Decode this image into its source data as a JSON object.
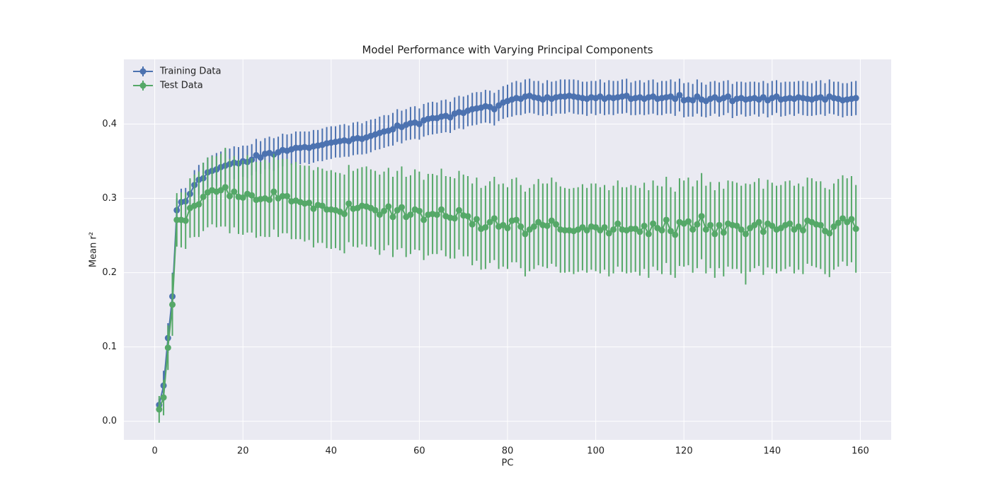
{
  "chart_data": {
    "type": "errorbar-line",
    "title": "Model Performance with Varying Principal Components",
    "x_label": "PC",
    "y_label": "Mean r²",
    "xlim": [
      -7,
      167
    ],
    "ylim": [
      -0.025,
      0.487
    ],
    "xticks": [
      0,
      20,
      40,
      60,
      80,
      100,
      120,
      140,
      160
    ],
    "yticks": [
      {
        "value": 0,
        "label": "0.0"
      },
      0.1,
      0.2,
      0.3,
      0.4
    ],
    "grid": true,
    "legend": "upper left",
    "x": [
      1,
      2,
      3,
      4,
      5,
      6,
      7,
      8,
      9,
      10,
      11,
      12,
      13,
      14,
      15,
      16,
      17,
      18,
      19,
      20,
      21,
      22,
      23,
      24,
      25,
      26,
      27,
      28,
      29,
      30,
      31,
      32,
      33,
      34,
      35,
      36,
      37,
      38,
      39,
      40,
      41,
      42,
      43,
      44,
      45,
      46,
      47,
      48,
      49,
      50,
      51,
      52,
      53,
      54,
      55,
      56,
      57,
      58,
      59,
      60,
      61,
      62,
      63,
      64,
      65,
      66,
      67,
      68,
      69,
      70,
      71,
      72,
      73,
      74,
      75,
      76,
      77,
      78,
      79,
      80,
      81,
      82,
      83,
      84,
      85,
      86,
      87,
      88,
      89,
      90,
      91,
      92,
      93,
      94,
      95,
      96,
      97,
      98,
      99,
      100,
      101,
      102,
      103,
      104,
      105,
      106,
      107,
      108,
      109,
      110,
      111,
      112,
      113,
      114,
      115,
      116,
      117,
      118,
      119,
      120,
      121,
      122,
      123,
      124,
      125,
      126,
      127,
      128,
      129,
      130,
      131,
      132,
      133,
      134,
      135,
      136,
      137,
      138,
      139,
      140,
      141,
      142,
      143,
      144,
      145,
      146,
      147,
      148,
      149,
      150,
      151,
      152,
      153,
      154,
      155,
      156,
      157,
      158,
      159
    ],
    "series": [
      {
        "name": "Training Data",
        "color": "#4c72b0",
        "values": [
          0.022,
          0.048,
          0.112,
          0.168,
          0.284,
          0.295,
          0.296,
          0.306,
          0.318,
          0.325,
          0.327,
          0.335,
          0.337,
          0.339,
          0.342,
          0.344,
          0.346,
          0.348,
          0.347,
          0.35,
          0.349,
          0.352,
          0.358,
          0.355,
          0.36,
          0.361,
          0.359,
          0.362,
          0.365,
          0.364,
          0.366,
          0.368,
          0.368,
          0.369,
          0.368,
          0.37,
          0.371,
          0.372,
          0.374,
          0.375,
          0.376,
          0.377,
          0.378,
          0.377,
          0.38,
          0.381,
          0.38,
          0.382,
          0.384,
          0.386,
          0.388,
          0.39,
          0.391,
          0.393,
          0.398,
          0.396,
          0.399,
          0.401,
          0.402,
          0.4,
          0.405,
          0.407,
          0.408,
          0.408,
          0.41,
          0.411,
          0.409,
          0.414,
          0.416,
          0.415,
          0.418,
          0.42,
          0.421,
          0.422,
          0.424,
          0.423,
          0.42,
          0.425,
          0.429,
          0.431,
          0.433,
          0.435,
          0.434,
          0.437,
          0.438,
          0.436,
          0.435,
          0.433,
          0.436,
          0.434,
          0.436,
          0.437,
          0.437,
          0.438,
          0.437,
          0.436,
          0.435,
          0.434,
          0.436,
          0.435,
          0.437,
          0.434,
          0.436,
          0.435,
          0.436,
          0.437,
          0.438,
          0.434,
          0.435,
          0.436,
          0.434,
          0.436,
          0.437,
          0.434,
          0.435,
          0.436,
          0.437,
          0.434,
          0.439,
          0.432,
          0.433,
          0.432,
          0.437,
          0.433,
          0.431,
          0.434,
          0.436,
          0.433,
          0.435,
          0.437,
          0.431,
          0.434,
          0.435,
          0.433,
          0.434,
          0.435,
          0.433,
          0.436,
          0.432,
          0.435,
          0.437,
          0.433,
          0.434,
          0.435,
          0.434,
          0.436,
          0.435,
          0.434,
          0.433,
          0.435,
          0.436,
          0.433,
          0.437,
          0.435,
          0.434,
          0.432,
          0.433,
          0.434,
          0.435
        ],
        "errors": [
          0.008,
          0.02,
          0.02,
          0.032,
          0.016,
          0.018,
          0.018,
          0.019,
          0.02,
          0.02,
          0.021,
          0.02,
          0.021,
          0.022,
          0.021,
          0.022,
          0.021,
          0.022,
          0.022,
          0.021,
          0.022,
          0.021,
          0.022,
          0.022,
          0.021,
          0.022,
          0.022,
          0.021,
          0.022,
          0.022,
          0.021,
          0.022,
          0.022,
          0.021,
          0.022,
          0.022,
          0.021,
          0.022,
          0.022,
          0.022,
          0.021,
          0.022,
          0.022,
          0.021,
          0.022,
          0.022,
          0.021,
          0.022,
          0.022,
          0.021,
          0.022,
          0.022,
          0.021,
          0.022,
          0.022,
          0.022,
          0.021,
          0.022,
          0.022,
          0.021,
          0.022,
          0.022,
          0.022,
          0.021,
          0.022,
          0.022,
          0.021,
          0.022,
          0.022,
          0.022,
          0.021,
          0.022,
          0.022,
          0.021,
          0.022,
          0.022,
          0.022,
          0.021,
          0.022,
          0.022,
          0.023,
          0.023,
          0.022,
          0.023,
          0.023,
          0.022,
          0.023,
          0.022,
          0.023,
          0.023,
          0.022,
          0.023,
          0.023,
          0.022,
          0.023,
          0.023,
          0.022,
          0.023,
          0.022,
          0.023,
          0.023,
          0.022,
          0.023,
          0.023,
          0.022,
          0.023,
          0.023,
          0.022,
          0.023,
          0.023,
          0.022,
          0.023,
          0.023,
          0.022,
          0.023,
          0.022,
          0.023,
          0.023,
          0.022,
          0.023,
          0.023,
          0.022,
          0.023,
          0.023,
          0.022,
          0.023,
          0.022,
          0.023,
          0.023,
          0.022,
          0.023,
          0.023,
          0.022,
          0.023,
          0.023,
          0.022,
          0.023,
          0.022,
          0.023,
          0.023,
          0.022,
          0.023,
          0.023,
          0.022,
          0.023,
          0.022,
          0.023,
          0.023,
          0.022,
          0.023,
          0.023,
          0.022,
          0.023,
          0.022,
          0.023,
          0.023,
          0.022,
          0.023,
          0.023
        ]
      },
      {
        "name": "Test Data",
        "color": "#55a868",
        "values": [
          0.016,
          0.032,
          0.099,
          0.157,
          0.271,
          0.271,
          0.27,
          0.287,
          0.29,
          0.292,
          0.302,
          0.308,
          0.311,
          0.309,
          0.311,
          0.315,
          0.303,
          0.309,
          0.302,
          0.301,
          0.306,
          0.304,
          0.298,
          0.299,
          0.3,
          0.298,
          0.309,
          0.3,
          0.303,
          0.303,
          0.296,
          0.297,
          0.295,
          0.293,
          0.294,
          0.286,
          0.291,
          0.29,
          0.285,
          0.285,
          0.284,
          0.282,
          0.279,
          0.293,
          0.286,
          0.287,
          0.29,
          0.289,
          0.287,
          0.284,
          0.278,
          0.283,
          0.289,
          0.275,
          0.284,
          0.288,
          0.275,
          0.278,
          0.285,
          0.283,
          0.271,
          0.278,
          0.279,
          0.278,
          0.285,
          0.276,
          0.274,
          0.273,
          0.284,
          0.277,
          0.276,
          0.265,
          0.272,
          0.259,
          0.261,
          0.268,
          0.273,
          0.262,
          0.264,
          0.26,
          0.27,
          0.271,
          0.262,
          0.252,
          0.258,
          0.262,
          0.268,
          0.264,
          0.263,
          0.27,
          0.265,
          0.258,
          0.257,
          0.257,
          0.256,
          0.258,
          0.261,
          0.257,
          0.262,
          0.261,
          0.257,
          0.261,
          0.253,
          0.258,
          0.266,
          0.258,
          0.257,
          0.259,
          0.259,
          0.255,
          0.263,
          0.252,
          0.266,
          0.26,
          0.257,
          0.271,
          0.256,
          0.251,
          0.268,
          0.266,
          0.269,
          0.258,
          0.265,
          0.276,
          0.258,
          0.264,
          0.252,
          0.264,
          0.254,
          0.266,
          0.264,
          0.263,
          0.258,
          0.252,
          0.26,
          0.264,
          0.268,
          0.255,
          0.266,
          0.263,
          0.258,
          0.26,
          0.264,
          0.266,
          0.258,
          0.262,
          0.257,
          0.27,
          0.268,
          0.265,
          0.264,
          0.256,
          0.253,
          0.262,
          0.267,
          0.273,
          0.268,
          0.272,
          0.259
        ],
        "errors": [
          0.018,
          0.024,
          0.03,
          0.042,
          0.036,
          0.037,
          0.038,
          0.04,
          0.042,
          0.044,
          0.046,
          0.047,
          0.046,
          0.048,
          0.049,
          0.053,
          0.05,
          0.048,
          0.05,
          0.05,
          0.052,
          0.05,
          0.051,
          0.05,
          0.052,
          0.05,
          0.051,
          0.052,
          0.05,
          0.05,
          0.051,
          0.052,
          0.05,
          0.051,
          0.05,
          0.052,
          0.051,
          0.05,
          0.052,
          0.053,
          0.051,
          0.052,
          0.053,
          0.052,
          0.051,
          0.053,
          0.052,
          0.054,
          0.052,
          0.053,
          0.054,
          0.053,
          0.052,
          0.054,
          0.053,
          0.055,
          0.054,
          0.053,
          0.054,
          0.053,
          0.054,
          0.055,
          0.054,
          0.053,
          0.055,
          0.054,
          0.055,
          0.054,
          0.053,
          0.055,
          0.054,
          0.055,
          0.056,
          0.055,
          0.056,
          0.055,
          0.056,
          0.057,
          0.056,
          0.055,
          0.056,
          0.057,
          0.056,
          0.057,
          0.056,
          0.057,
          0.058,
          0.056,
          0.057,
          0.058,
          0.057,
          0.058,
          0.057,
          0.056,
          0.058,
          0.057,
          0.058,
          0.057,
          0.058,
          0.059,
          0.058,
          0.057,
          0.058,
          0.059,
          0.058,
          0.057,
          0.058,
          0.059,
          0.058,
          0.059,
          0.058,
          0.059,
          0.058,
          0.057,
          0.059,
          0.058,
          0.059,
          0.058,
          0.059,
          0.058,
          0.059,
          0.058,
          0.059,
          0.058,
          0.059,
          0.058,
          0.059,
          0.058,
          0.059,
          0.058,
          0.059,
          0.058,
          0.059,
          0.068,
          0.059,
          0.058,
          0.059,
          0.058,
          0.059,
          0.058,
          0.059,
          0.058,
          0.059,
          0.058,
          0.059,
          0.058,
          0.059,
          0.058,
          0.059,
          0.058,
          0.059,
          0.058,
          0.059,
          0.058,
          0.059,
          0.058,
          0.059,
          0.058,
          0.059
        ]
      }
    ]
  }
}
